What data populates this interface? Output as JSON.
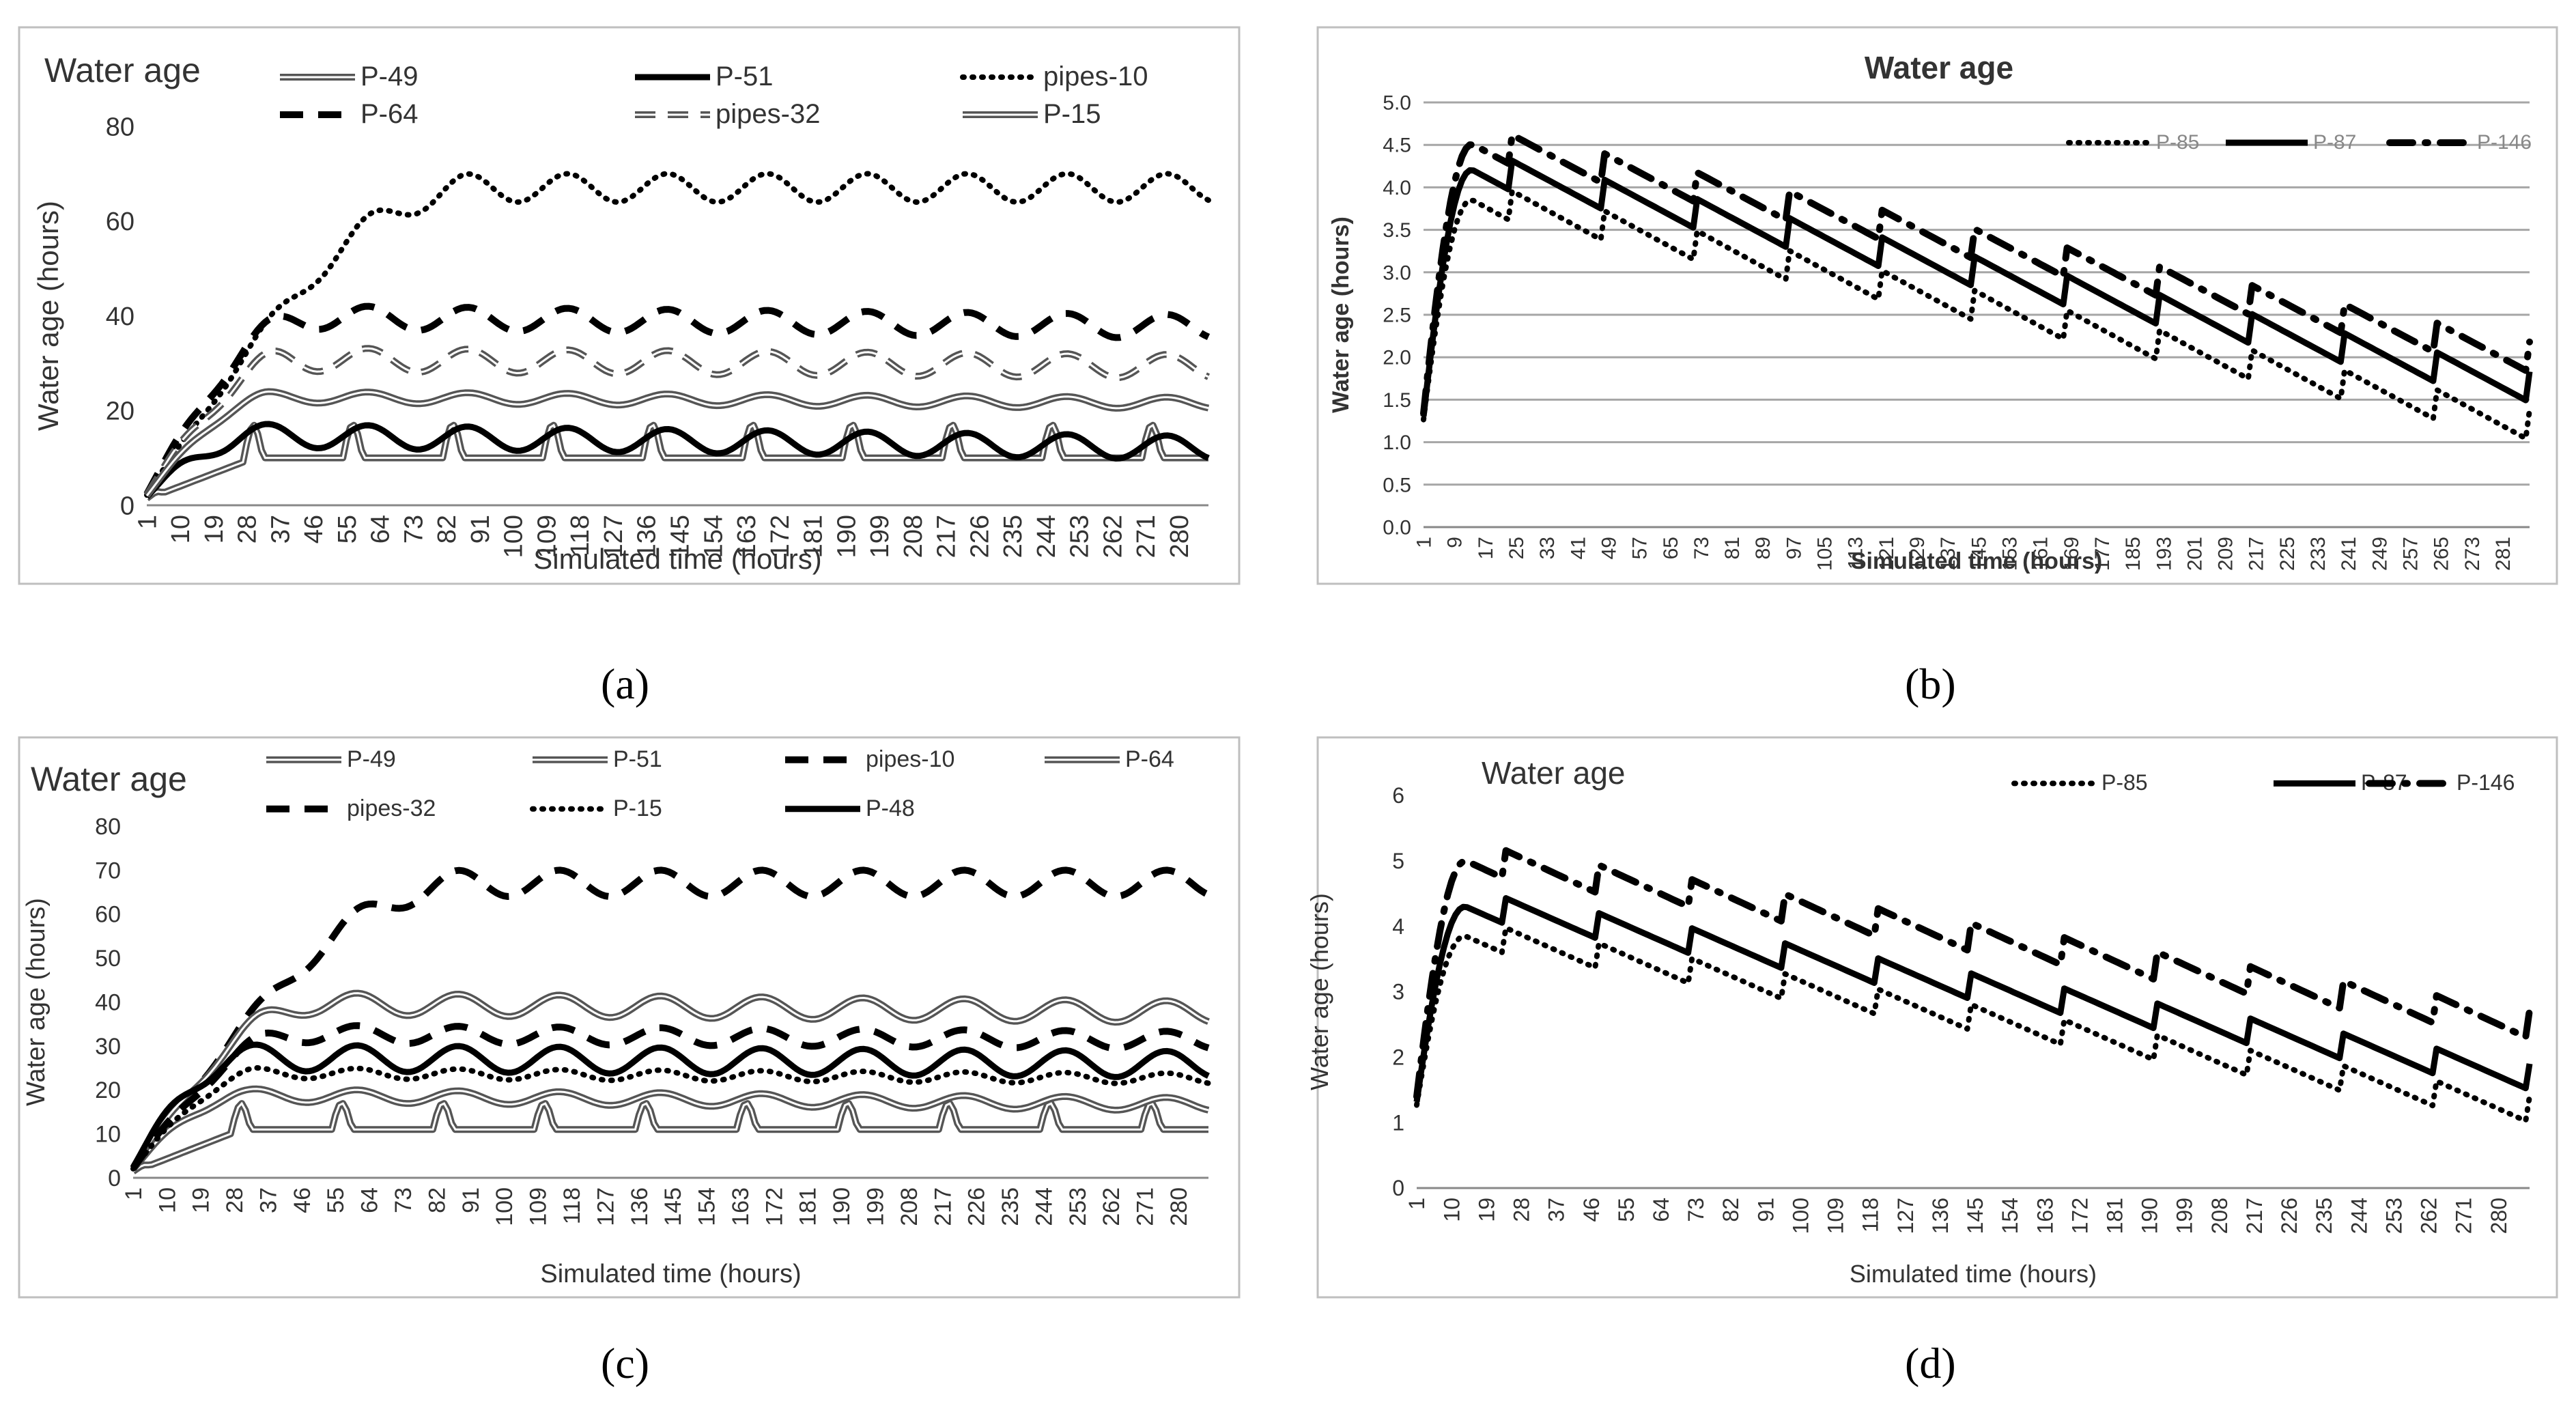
{
  "chart_data": [
    {
      "panel": "a",
      "caption": "(a)",
      "type": "line",
      "title": "Water age",
      "xlabel": "Simulated time (hours)",
      "ylabel": "Water age (hours)",
      "x_ticks": [
        "1",
        "10",
        "19",
        "28",
        "37",
        "46",
        "55",
        "64",
        "73",
        "82",
        "91",
        "100",
        "109",
        "118",
        "127",
        "136",
        "145",
        "154",
        "163",
        "172",
        "181",
        "190",
        "199",
        "208",
        "217",
        "226",
        "235",
        "244",
        "253",
        "262",
        "271",
        "280"
      ],
      "y_ticks": [
        "0",
        "20",
        "40",
        "60",
        "80"
      ],
      "ylim": [
        0,
        80
      ],
      "xlim": [
        1,
        288
      ],
      "legend_position": "top",
      "series": [
        {
          "name": "P-49",
          "style": "double",
          "color": "#555555",
          "base": 10,
          "peak": 17,
          "amp": 0,
          "trend": 0,
          "ramp": 30
        },
        {
          "name": "P-51",
          "style": "solid",
          "color": "#000000",
          "base": 15,
          "peak": 0,
          "amp": 2.5,
          "trend": -0.01,
          "ramp": 30
        },
        {
          "name": "pipes-10",
          "style": "dotted",
          "color": "#000000",
          "base": 67,
          "peak": 0,
          "amp": 3,
          "trend": 0,
          "ramp": 90
        },
        {
          "name": "P-64",
          "style": "dashed",
          "color": "#000000",
          "base": 40,
          "peak": 0,
          "amp": 2.5,
          "trend": -0.008,
          "ramp": 45
        },
        {
          "name": "pipes-32",
          "style": "double-dashed",
          "color": "#555555",
          "base": 31,
          "peak": 0,
          "amp": 2.5,
          "trend": -0.006,
          "ramp": 40
        },
        {
          "name": "P-15",
          "style": "double",
          "color": "#555555",
          "base": 23,
          "peak": 0,
          "amp": 1.2,
          "trend": -0.005,
          "ramp": 35
        }
      ]
    },
    {
      "panel": "b",
      "caption": "(b)",
      "type": "line",
      "title": "Water age",
      "xlabel": "Simulated time (hours)",
      "ylabel": "Water age (hours)",
      "x_ticks": [
        "1",
        "9",
        "17",
        "25",
        "33",
        "41",
        "49",
        "57",
        "65",
        "73",
        "81",
        "89",
        "97",
        "105",
        "113",
        "121",
        "129",
        "137",
        "145",
        "153",
        "161",
        "169",
        "177",
        "185",
        "193",
        "201",
        "209",
        "217",
        "225",
        "233",
        "241",
        "249",
        "257",
        "265",
        "273",
        "281"
      ],
      "y_ticks": [
        "0.0",
        "0.5",
        "1.0",
        "1.5",
        "2.0",
        "2.5",
        "3.0",
        "3.5",
        "4.0",
        "4.5",
        "5.0"
      ],
      "ylim": [
        0,
        5
      ],
      "xlim": [
        1,
        288
      ],
      "legend_position": "top-right",
      "series": [
        {
          "name": "P-85",
          "style": "dotted",
          "color": "#000000",
          "start": 4.0,
          "end": 1.2,
          "amp": 0.18
        },
        {
          "name": "P-87",
          "style": "solid",
          "color": "#000000",
          "start": 4.35,
          "end": 1.65,
          "amp": 0.18
        },
        {
          "name": "P-146",
          "style": "dashdot",
          "color": "#000000",
          "start": 4.65,
          "end": 2.0,
          "amp": 0.18
        }
      ]
    },
    {
      "panel": "c",
      "caption": "(c)",
      "type": "line",
      "title": "Water age",
      "xlabel": "Simulated time (hours)",
      "ylabel": "Water age (hours)",
      "x_ticks": [
        "1",
        "10",
        "19",
        "28",
        "37",
        "46",
        "55",
        "64",
        "73",
        "82",
        "91",
        "100",
        "109",
        "118",
        "127",
        "136",
        "145",
        "154",
        "163",
        "172",
        "181",
        "190",
        "199",
        "208",
        "217",
        "226",
        "235",
        "244",
        "253",
        "262",
        "271",
        "280"
      ],
      "y_ticks": [
        "0",
        "10",
        "20",
        "30",
        "40",
        "50",
        "60",
        "70",
        "80"
      ],
      "ylim": [
        0,
        80
      ],
      "xlim": [
        1,
        288
      ],
      "legend_position": "top",
      "series": [
        {
          "name": "P-49",
          "style": "double",
          "color": "#555555",
          "base": 11,
          "peak": 17,
          "amp": 0,
          "trend": 0,
          "ramp": 30
        },
        {
          "name": "P-51",
          "style": "double",
          "color": "#555555",
          "base": 19,
          "peak": 0,
          "amp": 1.5,
          "trend": -0.008,
          "ramp": 30
        },
        {
          "name": "pipes-10",
          "style": "dashed",
          "color": "#000000",
          "base": 67,
          "peak": 0,
          "amp": 3,
          "trend": 0,
          "ramp": 90
        },
        {
          "name": "P-64",
          "style": "double",
          "color": "#555555",
          "base": 40,
          "peak": 0,
          "amp": 2.5,
          "trend": -0.008,
          "ramp": 50
        },
        {
          "name": "pipes-32",
          "style": "dashed",
          "color": "#000000",
          "base": 33,
          "peak": 0,
          "amp": 2,
          "trend": -0.006,
          "ramp": 45
        },
        {
          "name": "P-15",
          "style": "dotted",
          "color": "#000000",
          "base": 24,
          "peak": 0,
          "amp": 1.2,
          "trend": -0.005,
          "ramp": 35
        },
        {
          "name": "P-48",
          "style": "solid",
          "color": "#000000",
          "base": 27.5,
          "peak": 0,
          "amp": 3,
          "trend": -0.006,
          "ramp": 30
        }
      ]
    },
    {
      "panel": "d",
      "caption": "(d)",
      "type": "line",
      "title": "Water age",
      "xlabel": "Simulated time (hours)",
      "ylabel": "Water age (hours)",
      "x_ticks": [
        "1",
        "10",
        "19",
        "28",
        "37",
        "46",
        "55",
        "64",
        "73",
        "82",
        "91",
        "100",
        "109",
        "118",
        "127",
        "136",
        "145",
        "154",
        "163",
        "172",
        "181",
        "190",
        "199",
        "208",
        "217",
        "226",
        "235",
        "244",
        "253",
        "262",
        "271",
        "280"
      ],
      "y_ticks": [
        "0",
        "1",
        "2",
        "3",
        "4",
        "5",
        "6"
      ],
      "ylim": [
        0,
        6
      ],
      "xlim": [
        1,
        288
      ],
      "legend_position": "top-right",
      "series": [
        {
          "name": "P-85",
          "style": "dotted",
          "color": "#000000",
          "start": 4.0,
          "end": 1.2,
          "amp": 0.2
        },
        {
          "name": "P-87",
          "style": "solid",
          "color": "#000000",
          "start": 4.45,
          "end": 1.7,
          "amp": 0.2
        },
        {
          "name": "P-146",
          "style": "dashdot",
          "color": "#000000",
          "start": 5.15,
          "end": 2.5,
          "amp": 0.22
        }
      ]
    }
  ]
}
